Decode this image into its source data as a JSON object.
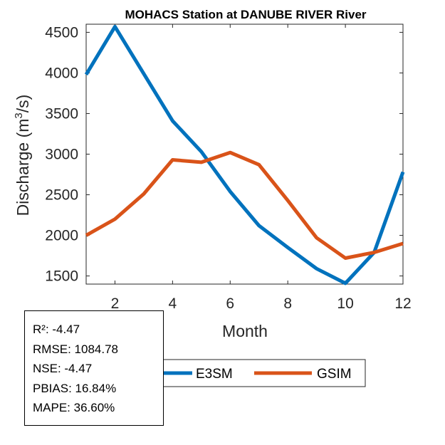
{
  "chart_data": {
    "type": "line",
    "title": "MOHACS  Station at  DANUBE RIVER  River",
    "xlabel": "Month",
    "ylabel_prefix": "Discharge (m",
    "ylabel_sup": "3",
    "ylabel_suffix": "/s)",
    "xlim": [
      1,
      12
    ],
    "ylim": [
      1400,
      4600
    ],
    "xticks": [
      2,
      4,
      6,
      8,
      10,
      12
    ],
    "yticks": [
      1500,
      2000,
      2500,
      3000,
      3500,
      4000,
      4500
    ],
    "x": [
      1,
      2,
      3,
      4,
      5,
      6,
      7,
      8,
      9,
      10,
      11,
      12
    ],
    "series": [
      {
        "name": "E3SM",
        "color": "#0072BD",
        "values": [
          3980,
          4570,
          3990,
          3410,
          3030,
          2540,
          2120,
          1850,
          1590,
          1410,
          1790,
          2780
        ]
      },
      {
        "name": "GSIM",
        "color": "#D95319",
        "values": [
          2000,
          2200,
          2510,
          2930,
          2900,
          3020,
          2870,
          2430,
          1970,
          1720,
          1790,
          1900
        ]
      }
    ],
    "grid": false,
    "legend_placement": "bottom-center"
  },
  "stats": [
    "R²: -4.47",
    "RMSE: 1084.78",
    "NSE: -4.47",
    "PBIAS: 16.84%",
    "MAPE: 36.60%"
  ]
}
